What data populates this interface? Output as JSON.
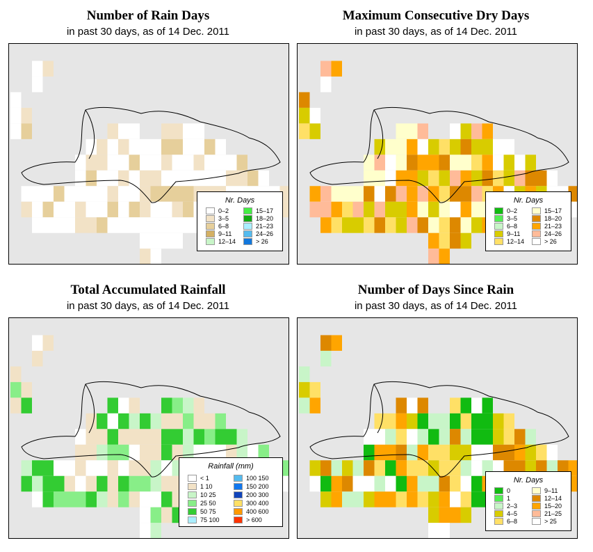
{
  "panels": [
    {
      "title": "Number of Rain Days",
      "subtitle": "in past 30 days, as of  14 Dec. 2011",
      "legend": {
        "title": "Nr. Days",
        "items": [
          {
            "label": "0–2",
            "color": "#ffffff"
          },
          {
            "label": "3–5",
            "color": "#f2e2c6"
          },
          {
            "label": "6–8",
            "color": "#e6cf9b"
          },
          {
            "label": "9–11",
            "color": "#d4b063"
          },
          {
            "label": "12–14",
            "color": "#c8f5c8"
          },
          {
            "label": "15–17",
            "color": "#44ee44"
          },
          {
            "label": "18–20",
            "color": "#11aa11"
          },
          {
            "label": "21–23",
            "color": "#aaeeff"
          },
          {
            "label": "24–26",
            "color": "#55bbee"
          },
          {
            "label": "> 26",
            "color": "#1177dd"
          }
        ]
      }
    },
    {
      "title": "Maximum Consecutive Dry Days",
      "subtitle": "in past 30 days, as of  14 Dec. 2011",
      "legend": {
        "title": "Nr. Days",
        "items": [
          {
            "label": "0–2",
            "color": "#11bb11"
          },
          {
            "label": "3–5",
            "color": "#55ee55"
          },
          {
            "label": "6–8",
            "color": "#c8f5c8"
          },
          {
            "label": "9–11",
            "color": "#d8cc00"
          },
          {
            "label": "12–14",
            "color": "#ffe066"
          },
          {
            "label": "15–17",
            "color": "#ffffcc"
          },
          {
            "label": "18–20",
            "color": "#dd8800"
          },
          {
            "label": "21–23",
            "color": "#ffa500"
          },
          {
            "label": "24–26",
            "color": "#ffbb99"
          },
          {
            "label": "> 26",
            "color": "#ffffff"
          }
        ]
      }
    },
    {
      "title": "Total Accumulated Rainfall",
      "subtitle": "in past 30 days, as of  14 Dec. 2011",
      "legend": {
        "title": "Rainfall (mm)",
        "items": [
          {
            "label": "< 1",
            "color": "#ffffff"
          },
          {
            "label": "1    10",
            "color": "#f2e2c6"
          },
          {
            "label": "10    25",
            "color": "#c8f5c8"
          },
          {
            "label": "25    50",
            "color": "#88ee88"
          },
          {
            "label": "50    75",
            "color": "#33cc33"
          },
          {
            "label": "75   100",
            "color": "#aaeeff"
          },
          {
            "label": "100   150",
            "color": "#55bbee"
          },
          {
            "label": "150   200",
            "color": "#1177ee"
          },
          {
            "label": "200   300",
            "color": "#1144bb"
          },
          {
            "label": "300   400",
            "color": "#ffe066"
          },
          {
            "label": "400   600",
            "color": "#ff9900"
          },
          {
            "label": "> 600",
            "color": "#ff3300"
          }
        ]
      }
    },
    {
      "title": "Number of Days Since Rain",
      "subtitle": "in past 30 days, as of  14 Dec. 2011",
      "legend": {
        "title": "Nr. Days",
        "items": [
          {
            "label": "0",
            "color": "#11bb11"
          },
          {
            "label": "1",
            "color": "#55ee55"
          },
          {
            "label": "2–3",
            "color": "#c8f5c8"
          },
          {
            "label": "4–5",
            "color": "#d8cc00"
          },
          {
            "label": "6–8",
            "color": "#ffe066"
          },
          {
            "label": "9–11",
            "color": "#ffffcc"
          },
          {
            "label": "12–14",
            "color": "#dd8800"
          },
          {
            "label": "15–20",
            "color": "#ffa500"
          },
          {
            "label": "21–25",
            "color": "#ffbb99"
          },
          {
            "label": "> 25",
            "color": "#ffffff"
          }
        ]
      }
    }
  ]
}
